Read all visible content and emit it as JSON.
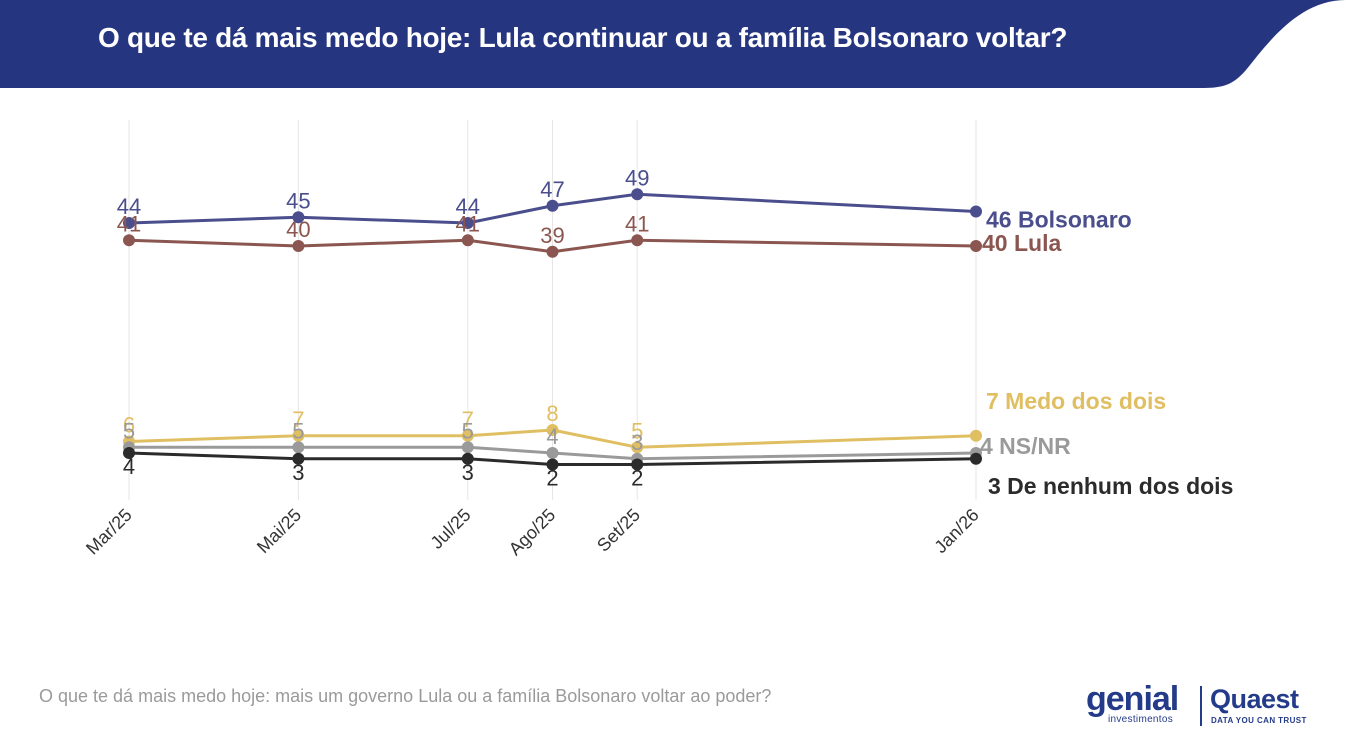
{
  "header": {
    "title": "O que te dá mais medo hoje: Lula continuar ou a família Bolsonaro voltar?",
    "color": "#263580"
  },
  "footnote": "O que te dá mais medo hoje: mais um governo Lula ou a família Bolsonaro voltar ao poder?",
  "logos": {
    "genial": "genial",
    "genial_sub": "investimentos",
    "quaest": "Quaest",
    "quaest_sub": "DATA YOU CAN TRUST"
  },
  "chart_data": {
    "type": "line",
    "categories": [
      "Mar/25",
      "Mai/25",
      "Jul/25",
      "Ago/25",
      "Set/25",
      "Jan/26"
    ],
    "x_months": [
      0,
      2,
      4,
      5,
      6,
      10
    ],
    "ylim": [
      0,
      60
    ],
    "grid": "vertical",
    "legend": "end-of-line labels",
    "series": [
      {
        "name": "Bolsonaro",
        "end_label": "46 Bolsonaro",
        "color": "#4a4e8c",
        "values": [
          44,
          45,
          44,
          47,
          49,
          46
        ]
      },
      {
        "name": "Lula",
        "end_label": "40 Lula",
        "color": "#8b5650",
        "values": [
          41,
          40,
          41,
          39,
          41,
          40
        ]
      },
      {
        "name": "Medo dos dois",
        "end_label": "7 Medo dos dois",
        "color": "#e0be62",
        "values": [
          6,
          7,
          7,
          8,
          5,
          7
        ]
      },
      {
        "name": "NS/NR",
        "end_label": "4 NS/NR",
        "color": "#9a9a9a",
        "values": [
          5,
          5,
          5,
          4,
          3,
          4
        ]
      },
      {
        "name": "De nenhum dos dois",
        "end_label": "3 De nenhum dos dois",
        "color": "#2b2b2b",
        "values": [
          4,
          3,
          3,
          2,
          2,
          3
        ]
      }
    ]
  }
}
